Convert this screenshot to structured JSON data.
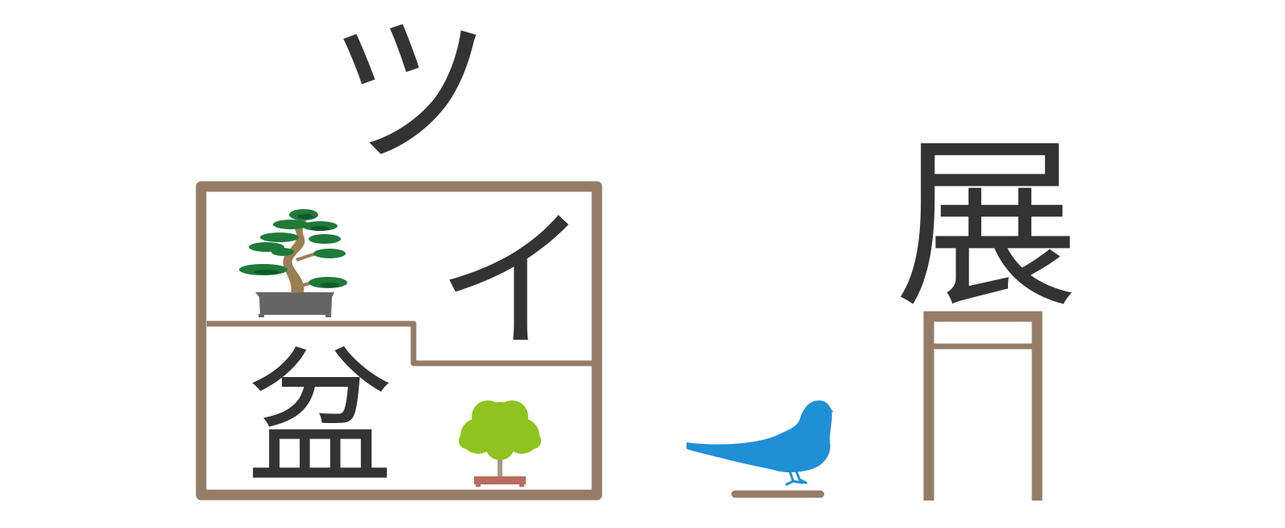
{
  "title_characters": {
    "tsu": "ツ",
    "i": "イ",
    "bon": "盆",
    "ten": "展"
  },
  "colors": {
    "ink": "#333333",
    "shelf_wood": "#957c67",
    "pine_foliage": "#1f7a3a",
    "pine_trunk": "#9b7e52",
    "pot_gray": "#666464",
    "bush_green": "#8fc31f",
    "pot_terracotta": "#b86e5e",
    "bird_blue": "#1f8fd6"
  },
  "icons": [
    "pine-bonsai-icon",
    "round-bonsai-icon",
    "parakeet-icon",
    "gateway-icon"
  ]
}
